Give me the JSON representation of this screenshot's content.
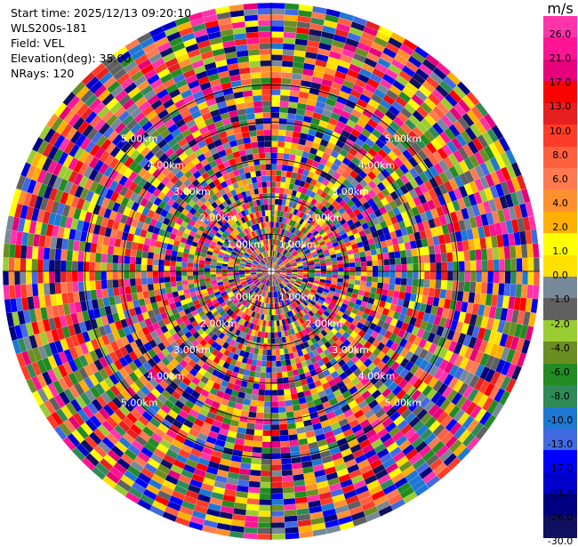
{
  "info": {
    "start_time": "Start time: 2025/12/13 09:20:10",
    "instrument": "WLS200s-181",
    "field": "Field: VEL",
    "elevation": "Elevation(deg): 35.00",
    "nrays": "NRays: 120"
  },
  "chart_data": {
    "type": "heatmap",
    "projection": "ppi-polar",
    "field": "VEL",
    "nrays": 120,
    "range_rings_km": [
      1,
      2,
      3,
      4,
      5
    ],
    "ring_labels": [
      "1.00km",
      "2.00km",
      "3.00km",
      "4.00km",
      "5.00km"
    ],
    "max_range_km": 7.2,
    "colorbar": {
      "unit": "m/s",
      "ticks": [
        "26.0",
        "21.0",
        "17.0",
        "13.0",
        "10.0",
        "8.0",
        "6.0",
        "4.0",
        "2.0",
        "1.0",
        "0.0",
        "-1.0",
        "-2.0",
        "-4.0",
        "-6.0",
        "-8.0",
        "-10.0",
        "-13.0",
        "-17.0",
        "-21.0",
        "-26.0",
        "-30.0"
      ],
      "colors": [
        "#ff33aa",
        "#ff1493",
        "#e6007a",
        "#ff0000",
        "#e62020",
        "#ff3c28",
        "#ff6040",
        "#ff7a50",
        "#ff9030",
        "#ffb000",
        "#ffff00",
        "#ffe000",
        "#778899",
        "#606060",
        "#9acd32",
        "#6b8e23",
        "#228b22",
        "#2e8b57",
        "#1e78d2",
        "#4169e1",
        "#0000ff",
        "#0000cd",
        "#000080",
        "#101060"
      ]
    }
  }
}
